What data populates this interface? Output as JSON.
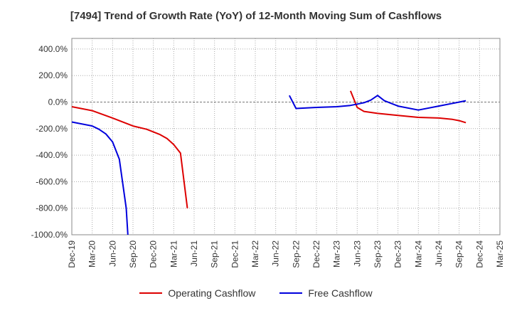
{
  "chart_data": {
    "type": "line",
    "title": "[7494]  Trend of Growth Rate (YoY) of 12-Month Moving Sum of Cashflows",
    "xlabel": "",
    "ylabel": "",
    "ylim": [
      -1000,
      480
    ],
    "yticks": [
      400,
      200,
      0,
      -200,
      -400,
      -600,
      -800,
      -1000
    ],
    "ytick_labels": [
      "400.0%",
      "200.0%",
      "0.0%",
      "-200.0%",
      "-400.0%",
      "-600.0%",
      "-800.0%",
      "-1000.0%"
    ],
    "categories": [
      "Dec-19",
      "Mar-20",
      "Jun-20",
      "Sep-20",
      "Dec-20",
      "Mar-21",
      "Jun-21",
      "Sep-21",
      "Dec-21",
      "Mar-22",
      "Jun-22",
      "Sep-22",
      "Dec-22",
      "Mar-23",
      "Jun-23",
      "Sep-23",
      "Dec-23",
      "Mar-24",
      "Jun-24",
      "Sep-24",
      "Dec-24",
      "Mar-25"
    ],
    "grid": true,
    "legend_position": "bottom",
    "series": [
      {
        "name": "Operating Cashflow",
        "color": "#dd0000",
        "points": [
          [
            0,
            -35
          ],
          [
            1,
            -65
          ],
          [
            2,
            -120
          ],
          [
            3,
            -180
          ],
          [
            3.67,
            -205
          ],
          [
            4.33,
            -245
          ],
          [
            4.67,
            -275
          ],
          [
            5,
            -320
          ],
          [
            5.33,
            -385
          ],
          [
            5.67,
            -800
          ],
          [
            null,
            null
          ],
          [
            13.67,
            85
          ],
          [
            14,
            -40
          ],
          [
            14.33,
            -70
          ],
          [
            15,
            -85
          ],
          [
            16,
            -100
          ],
          [
            17,
            -115
          ],
          [
            18,
            -120
          ],
          [
            18.67,
            -130
          ],
          [
            19,
            -140
          ],
          [
            19.33,
            -155
          ]
        ]
      },
      {
        "name": "Free Cashflow",
        "color": "#0000dd",
        "points": [
          [
            0,
            -150
          ],
          [
            1,
            -180
          ],
          [
            1.33,
            -205
          ],
          [
            1.67,
            -240
          ],
          [
            2,
            -300
          ],
          [
            2.33,
            -430
          ],
          [
            2.67,
            -800
          ],
          [
            2.75,
            -1000
          ],
          [
            null,
            null
          ],
          [
            10.67,
            50
          ],
          [
            11,
            -48
          ],
          [
            12,
            -40
          ],
          [
            13,
            -35
          ],
          [
            13.67,
            -25
          ],
          [
            14.33,
            -5
          ],
          [
            14.67,
            15
          ],
          [
            15,
            50
          ],
          [
            15.33,
            10
          ],
          [
            16,
            -30
          ],
          [
            17,
            -60
          ],
          [
            18,
            -30
          ],
          [
            19,
            0
          ],
          [
            19.33,
            10
          ]
        ]
      }
    ]
  }
}
